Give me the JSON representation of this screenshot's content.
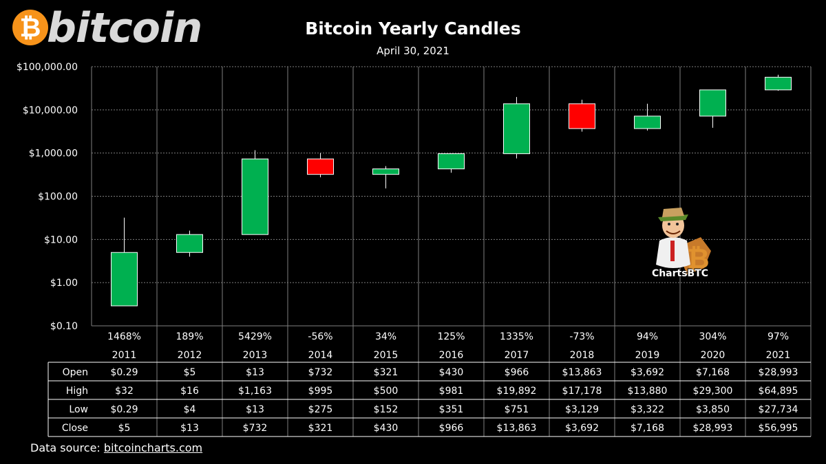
{
  "logo": {
    "glyph": "₿",
    "text": "bitcoin"
  },
  "title": "Bitcoin Yearly Candles",
  "subtitle": "April 30, 2021",
  "watermark": "ChartsBTC",
  "source": {
    "label": "Data source:",
    "link": "bitcoincharts.com"
  },
  "colors": {
    "up": "#00b050",
    "down": "#ff0000",
    "grid": "#7f7f7f",
    "background": "#000000"
  },
  "chart_data": {
    "type": "candlestick",
    "y_scale": "log",
    "ylim": [
      0.1,
      100000
    ],
    "y_ticks": [
      0.1,
      1,
      10,
      100,
      1000,
      10000,
      100000
    ],
    "y_tick_labels": [
      "$0.10",
      "$1.00",
      "$10.00",
      "$100.00",
      "$1,000.00",
      "$10,000.00",
      "$100,000.00"
    ],
    "grid": true,
    "years": [
      "2011",
      "2012",
      "2013",
      "2014",
      "2015",
      "2016",
      "2017",
      "2018",
      "2019",
      "2020",
      "2021"
    ],
    "pct_change": [
      "1468%",
      "189%",
      "5429%",
      "-56%",
      "34%",
      "125%",
      "1335%",
      "-73%",
      "94%",
      "304%",
      "97%"
    ],
    "open": [
      0.29,
      5,
      13,
      732,
      321,
      430,
      966,
      13863,
      3692,
      7168,
      28993
    ],
    "high": [
      32,
      16,
      1163,
      995,
      500,
      981,
      19892,
      17178,
      13880,
      29300,
      64895
    ],
    "low": [
      0.29,
      4,
      13,
      275,
      152,
      351,
      751,
      3129,
      3322,
      3850,
      27734
    ],
    "close": [
      5,
      13,
      732,
      321,
      430,
      966,
      13863,
      3692,
      7168,
      28993,
      56995
    ],
    "table": {
      "rows": [
        {
          "label": "Open",
          "cells": [
            "$0.29",
            "$5",
            "$13",
            "$732",
            "$321",
            "$430",
            "$966",
            "$13,863",
            "$3,692",
            "$7,168",
            "$28,993"
          ]
        },
        {
          "label": "High",
          "cells": [
            "$32",
            "$16",
            "$1,163",
            "$995",
            "$500",
            "$981",
            "$19,892",
            "$17,178",
            "$13,880",
            "$29,300",
            "$64,895"
          ]
        },
        {
          "label": "Low",
          "cells": [
            "$0.29",
            "$4",
            "$13",
            "$275",
            "$152",
            "$351",
            "$751",
            "$3,129",
            "$3,322",
            "$3,850",
            "$27,734"
          ]
        },
        {
          "label": "Close",
          "cells": [
            "$5",
            "$13",
            "$732",
            "$321",
            "$430",
            "$966",
            "$13,863",
            "$3,692",
            "$7,168",
            "$28,993",
            "$56,995"
          ]
        }
      ]
    }
  }
}
